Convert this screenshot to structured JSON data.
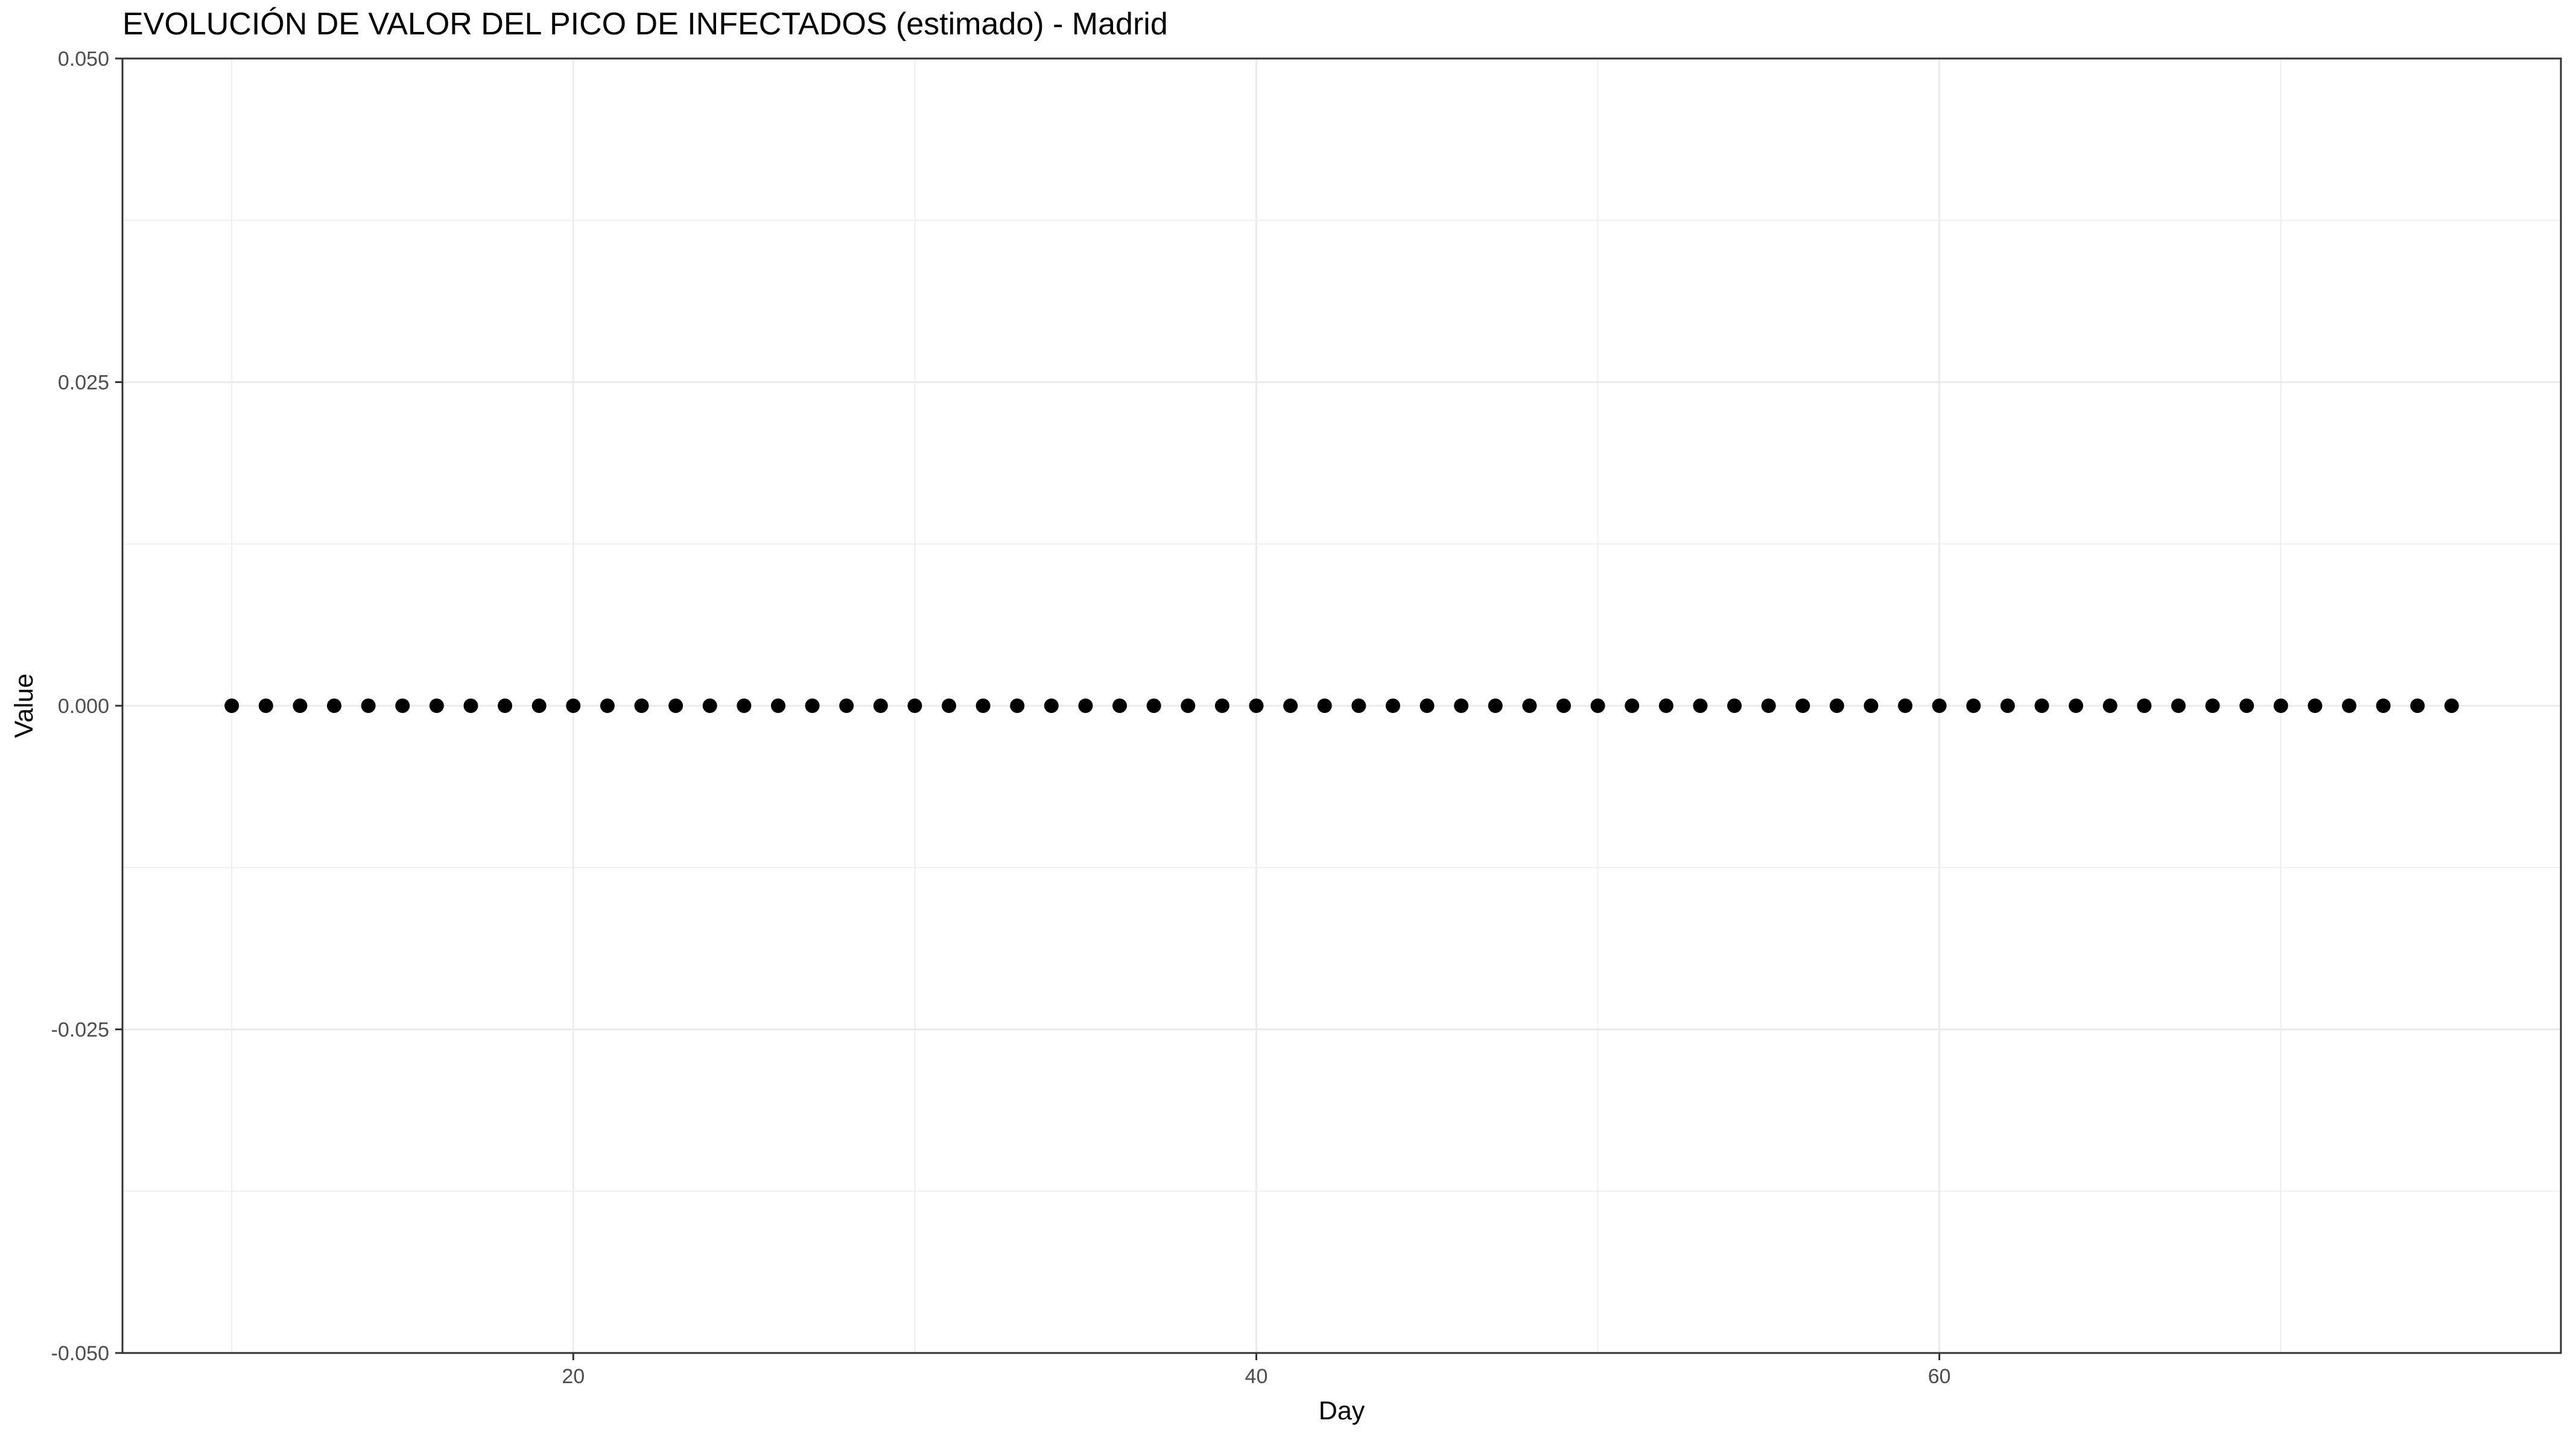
{
  "chart_data": {
    "type": "scatter",
    "title": "EVOLUCIÓN DE VALOR DEL PICO DE INFECTADOS (estimado) - Madrid",
    "xlabel": "Day",
    "ylabel": "Value",
    "xlim": [
      6.8,
      78.2
    ],
    "ylim": [
      -0.05,
      0.05
    ],
    "xticks": [
      20,
      40,
      60
    ],
    "xtick_labels": [
      "20",
      "40",
      "60"
    ],
    "xticks_minor": [
      10,
      30,
      50,
      70
    ],
    "yticks": [
      -0.05,
      -0.025,
      0,
      0.025,
      0.05
    ],
    "ytick_labels": [
      "-0.050",
      "-0.025",
      "0.000",
      "0.025",
      "0.050"
    ],
    "yticks_minor": [
      -0.0375,
      -0.0125,
      0.0125,
      0.0375
    ],
    "grid": true,
    "point_color": "#000000",
    "series": [
      {
        "x": [
          10,
          11,
          12,
          13,
          14,
          15,
          16,
          17,
          18,
          19,
          20,
          21,
          22,
          23,
          24,
          25,
          26,
          27,
          28,
          29,
          30,
          31,
          32,
          33,
          34,
          35,
          36,
          37,
          38,
          39,
          40,
          41,
          42,
          43,
          44,
          45,
          46,
          47,
          48,
          49,
          50,
          51,
          52,
          53,
          54,
          55,
          56,
          57,
          58,
          59,
          60,
          61,
          62,
          63,
          64,
          65,
          66,
          67,
          68,
          69,
          70,
          71,
          72,
          73,
          74,
          75
        ],
        "y": [
          0,
          0,
          0,
          0,
          0,
          0,
          0,
          0,
          0,
          0,
          0,
          0,
          0,
          0,
          0,
          0,
          0,
          0,
          0,
          0,
          0,
          0,
          0,
          0,
          0,
          0,
          0,
          0,
          0,
          0,
          0,
          0,
          0,
          0,
          0,
          0,
          0,
          0,
          0,
          0,
          0,
          0,
          0,
          0,
          0,
          0,
          0,
          0,
          0,
          0,
          0,
          0,
          0,
          0,
          0,
          0,
          0,
          0,
          0,
          0,
          0,
          0,
          0,
          0,
          0,
          0
        ]
      }
    ]
  }
}
